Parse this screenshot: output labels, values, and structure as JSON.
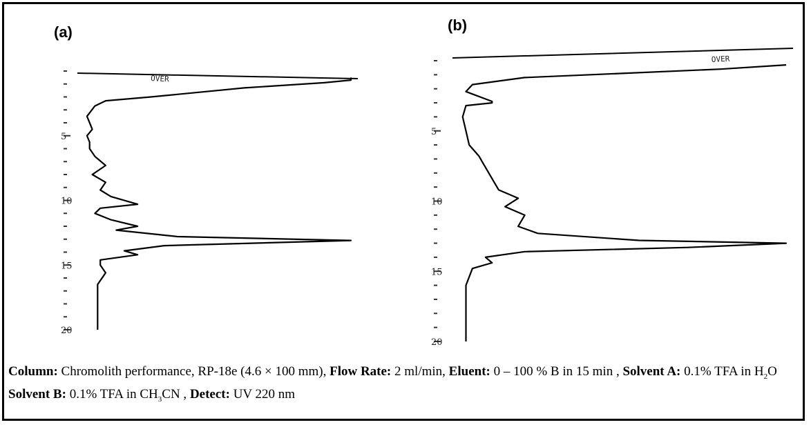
{
  "panels": [
    {
      "label": "(a)",
      "over_text": "OVER"
    },
    {
      "label": "(b)",
      "over_text": "OVER"
    }
  ],
  "caption": {
    "column_label": "Column:",
    "column_value": " Chromolith performance, RP-18e (4.6 × 100 mm),",
    "flow_label": " Flow Rate:",
    "flow_value": " 2 ml/min,",
    "eluent_label": " Eluent:",
    "eluent_value": " 0 – 100 % B in 15 min ,",
    "solvent_a_label": " Solvent A:",
    "solvent_a_value": " 0.1% TFA in H",
    "solvent_a_sub": "2",
    "solvent_a_tail": "O",
    "solvent_b_label": " Solvent B:",
    "solvent_b_value": " 0.1% TFA in CH",
    "solvent_b_sub": "3",
    "solvent_b_tail": "CN ,",
    "detect_label": " Detect:",
    "detect_value": " UV 220 nm"
  },
  "chart_data": [
    {
      "type": "line",
      "panel": "(a)",
      "time_axis": {
        "orientation": "vertical",
        "range": [
          0,
          20
        ],
        "tick_labels": [
          "5",
          "10",
          "15",
          "20"
        ],
        "tick_values": [
          5,
          10,
          15,
          20
        ]
      },
      "series": [
        {
          "points": [
            [
              0.5,
              100
            ],
            [
              0.7,
              100
            ],
            [
              0.9,
              90
            ],
            [
              1.3,
              60
            ],
            [
              2.0,
              25
            ],
            [
              2.3,
              8
            ],
            [
              2.7,
              4
            ],
            [
              3.5,
              1
            ],
            [
              4.5,
              3
            ],
            [
              5.0,
              1
            ],
            [
              5.5,
              2
            ],
            [
              6.0,
              2
            ],
            [
              6.6,
              4
            ],
            [
              7.3,
              8
            ],
            [
              8.0,
              3
            ],
            [
              8.6,
              8
            ],
            [
              9.2,
              6
            ],
            [
              9.7,
              10
            ],
            [
              10.3,
              20
            ],
            [
              10.6,
              6
            ],
            [
              11.0,
              4
            ],
            [
              11.5,
              10
            ],
            [
              12.0,
              20
            ],
            [
              12.3,
              12
            ],
            [
              12.8,
              35
            ],
            [
              13.1,
              100
            ],
            [
              13.5,
              30
            ],
            [
              13.9,
              15
            ],
            [
              14.2,
              20
            ],
            [
              14.6,
              6
            ],
            [
              15.0,
              6
            ],
            [
              15.6,
              8
            ],
            [
              16.5,
              5
            ],
            [
              18.0,
              5
            ],
            [
              20.0,
              5
            ]
          ]
        }
      ]
    },
    {
      "type": "line",
      "panel": "(b)",
      "time_axis": {
        "orientation": "vertical",
        "range": [
          0,
          20
        ],
        "tick_labels": [
          "5",
          "10",
          "15",
          "20"
        ],
        "tick_values": [
          5,
          10,
          15,
          20
        ]
      },
      "series": [
        {
          "points": [
            [
              0.3,
              100
            ],
            [
              0.6,
              80
            ],
            [
              1.2,
              20
            ],
            [
              1.7,
              4
            ],
            [
              2.2,
              2
            ],
            [
              2.9,
              10
            ],
            [
              3.0,
              10
            ],
            [
              3.2,
              2
            ],
            [
              4.0,
              1
            ],
            [
              5.0,
              2
            ],
            [
              6.0,
              3
            ],
            [
              6.8,
              6
            ],
            [
              7.6,
              8
            ],
            [
              8.4,
              10
            ],
            [
              9.2,
              12
            ],
            [
              9.8,
              18
            ],
            [
              10.4,
              14
            ],
            [
              11.0,
              20
            ],
            [
              11.8,
              18
            ],
            [
              12.3,
              24
            ],
            [
              12.8,
              55
            ],
            [
              13.0,
              100
            ],
            [
              13.3,
              70
            ],
            [
              13.6,
              20
            ],
            [
              14.0,
              8
            ],
            [
              14.4,
              10
            ],
            [
              14.8,
              4
            ],
            [
              16.0,
              2
            ],
            [
              18.0,
              2
            ],
            [
              20.0,
              2
            ]
          ]
        }
      ]
    }
  ]
}
